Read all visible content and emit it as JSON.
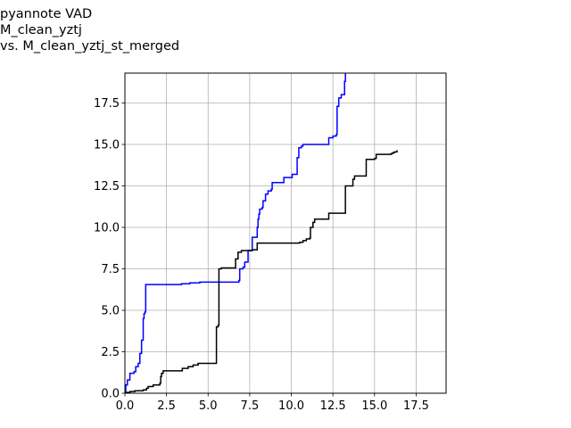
{
  "chart_data": {
    "type": "line",
    "title_lines": [
      "pyannote VAD",
      "M_clean_yztj",
      "vs. M_clean_yztj_st_merged"
    ],
    "xlabel": "",
    "ylabel": "",
    "xlim": [
      0,
      19.3
    ],
    "ylim": [
      0,
      19.3
    ],
    "xticks": [
      "0.0",
      "2.5",
      "5.0",
      "7.5",
      "10.0",
      "12.5",
      "15.0",
      "17.5"
    ],
    "yticks": [
      "0.0",
      "2.5",
      "5.0",
      "7.5",
      "10.0",
      "12.5",
      "15.0",
      "17.5"
    ],
    "xtick_values": [
      0,
      2.5,
      5,
      7.5,
      10,
      12.5,
      15,
      17.5
    ],
    "ytick_values": [
      0,
      2.5,
      5,
      7.5,
      10,
      12.5,
      15,
      17.5
    ],
    "grid": true,
    "series": [
      {
        "color": "#0000ff",
        "points": [
          [
            0.0,
            0.0
          ],
          [
            0.05,
            0.5
          ],
          [
            0.1,
            0.5
          ],
          [
            0.15,
            0.8
          ],
          [
            0.25,
            0.8
          ],
          [
            0.3,
            1.2
          ],
          [
            0.5,
            1.2
          ],
          [
            0.55,
            1.3
          ],
          [
            0.6,
            1.3
          ],
          [
            0.65,
            1.6
          ],
          [
            0.75,
            1.6
          ],
          [
            0.8,
            1.8
          ],
          [
            0.85,
            1.8
          ],
          [
            0.9,
            2.4
          ],
          [
            0.95,
            2.4
          ],
          [
            1.0,
            3.2
          ],
          [
            1.05,
            3.2
          ],
          [
            1.1,
            4.5
          ],
          [
            1.15,
            4.8
          ],
          [
            1.2,
            4.9
          ],
          [
            1.25,
            6.55
          ],
          [
            3.4,
            6.55
          ],
          [
            3.4,
            6.6
          ],
          [
            3.9,
            6.65
          ],
          [
            4.5,
            6.7
          ],
          [
            6.8,
            6.7
          ],
          [
            6.85,
            6.8
          ],
          [
            6.9,
            7.5
          ],
          [
            7.1,
            7.6
          ],
          [
            7.2,
            7.9
          ],
          [
            7.35,
            7.9
          ],
          [
            7.4,
            8.6
          ],
          [
            7.6,
            8.6
          ],
          [
            7.65,
            9.4
          ],
          [
            7.9,
            9.4
          ],
          [
            7.95,
            10.0
          ],
          [
            8.0,
            10.5
          ],
          [
            8.05,
            10.8
          ],
          [
            8.1,
            11.1
          ],
          [
            8.25,
            11.2
          ],
          [
            8.3,
            11.6
          ],
          [
            8.4,
            11.6
          ],
          [
            8.45,
            12.0
          ],
          [
            8.6,
            12.2
          ],
          [
            8.8,
            12.3
          ],
          [
            8.85,
            12.7
          ],
          [
            9.5,
            12.7
          ],
          [
            9.55,
            13.0
          ],
          [
            10.0,
            13.0
          ],
          [
            10.05,
            13.2
          ],
          [
            10.3,
            13.2
          ],
          [
            10.35,
            14.2
          ],
          [
            10.45,
            14.8
          ],
          [
            10.6,
            14.9
          ],
          [
            10.7,
            15.0
          ],
          [
            12.2,
            15.0
          ],
          [
            12.25,
            15.4
          ],
          [
            12.5,
            15.5
          ],
          [
            12.7,
            15.6
          ],
          [
            12.75,
            17.3
          ],
          [
            12.85,
            17.8
          ],
          [
            13.0,
            18.0
          ],
          [
            13.15,
            18.0
          ],
          [
            13.2,
            18.8
          ],
          [
            13.25,
            19.3
          ]
        ]
      },
      {
        "color": "#000000",
        "points": [
          [
            0.0,
            0.0
          ],
          [
            0.1,
            0.05
          ],
          [
            0.3,
            0.1
          ],
          [
            0.6,
            0.15
          ],
          [
            1.1,
            0.2
          ],
          [
            1.3,
            0.3
          ],
          [
            1.4,
            0.4
          ],
          [
            1.7,
            0.5
          ],
          [
            2.1,
            0.6
          ],
          [
            2.15,
            1.0
          ],
          [
            2.2,
            1.2
          ],
          [
            2.3,
            1.35
          ],
          [
            3.4,
            1.35
          ],
          [
            3.45,
            1.5
          ],
          [
            3.8,
            1.6
          ],
          [
            4.1,
            1.7
          ],
          [
            4.4,
            1.8
          ],
          [
            5.45,
            1.8
          ],
          [
            5.5,
            4.0
          ],
          [
            5.6,
            4.1
          ],
          [
            5.65,
            7.5
          ],
          [
            5.8,
            7.55
          ],
          [
            6.6,
            7.55
          ],
          [
            6.65,
            8.1
          ],
          [
            6.8,
            8.5
          ],
          [
            7.0,
            8.6
          ],
          [
            7.6,
            8.6
          ],
          [
            7.65,
            8.65
          ],
          [
            7.9,
            8.65
          ],
          [
            7.95,
            9.05
          ],
          [
            10.4,
            9.05
          ],
          [
            10.5,
            9.1
          ],
          [
            10.7,
            9.2
          ],
          [
            10.9,
            9.3
          ],
          [
            11.1,
            9.35
          ],
          [
            11.15,
            10.0
          ],
          [
            11.3,
            10.3
          ],
          [
            11.4,
            10.5
          ],
          [
            12.2,
            10.5
          ],
          [
            12.25,
            10.85
          ],
          [
            13.2,
            10.85
          ],
          [
            13.25,
            12.5
          ],
          [
            13.65,
            12.5
          ],
          [
            13.7,
            12.9
          ],
          [
            13.8,
            13.1
          ],
          [
            14.45,
            13.1
          ],
          [
            14.5,
            14.1
          ],
          [
            15.0,
            14.15
          ],
          [
            15.1,
            14.4
          ],
          [
            15.5,
            14.4
          ],
          [
            16.0,
            14.45
          ],
          [
            16.1,
            14.5
          ],
          [
            16.2,
            14.55
          ],
          [
            16.35,
            14.65
          ]
        ]
      }
    ]
  }
}
